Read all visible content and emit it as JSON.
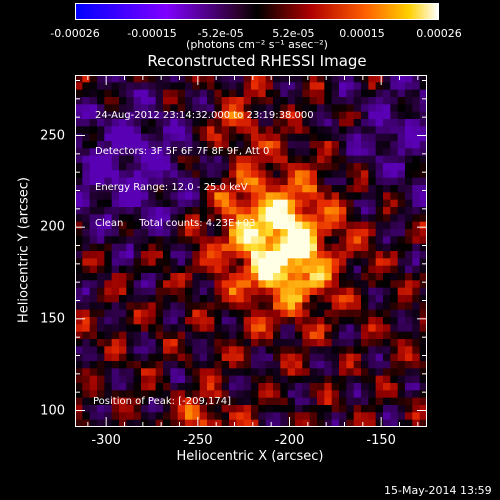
{
  "chart_data": {
    "type": "heatmap",
    "title": "Reconstructed RHESSI Image",
    "xlabel": "Heliocentric X (arcsec)",
    "ylabel": "Heliocentric Y (arcsec)",
    "xlim": [
      -317,
      -125
    ],
    "ylim": [
      91,
      283
    ],
    "x_ticks": [
      "-300",
      "-250",
      "-200",
      "-150"
    ],
    "x_tick_values": [
      -300,
      -250,
      -200,
      -150
    ],
    "y_ticks": [
      "100",
      "150",
      "200",
      "250"
    ],
    "y_tick_values": [
      100,
      150,
      200,
      250
    ],
    "colorbar": {
      "ticks": [
        "-0.00026",
        "-0.00015",
        "-5.2e-05",
        "5.2e-05",
        "0.00015",
        "0.00026"
      ],
      "tick_values": [
        -0.00026,
        -0.00015,
        -5.2e-05,
        5.2e-05,
        0.00015,
        0.00026
      ],
      "units": "(photons cm⁻² s⁻¹ asec⁻²)",
      "range": [
        -0.00026,
        0.00026
      ]
    },
    "annotations": [
      "24-Aug-2012 23:14:32.000 to 23:19:38.000",
      "Detectors: 3F 5F 6F 7F 8F 9F, Att 0",
      "Energy Range: 12.0 - 25.0 keV",
      "Clean     Total counts: 4.23E+03"
    ],
    "peak_label": "Position of Peak: [-209,174]",
    "peak": [
      -209,
      174
    ],
    "grid": false
  },
  "datestamp": "15-May-2014 13:59"
}
